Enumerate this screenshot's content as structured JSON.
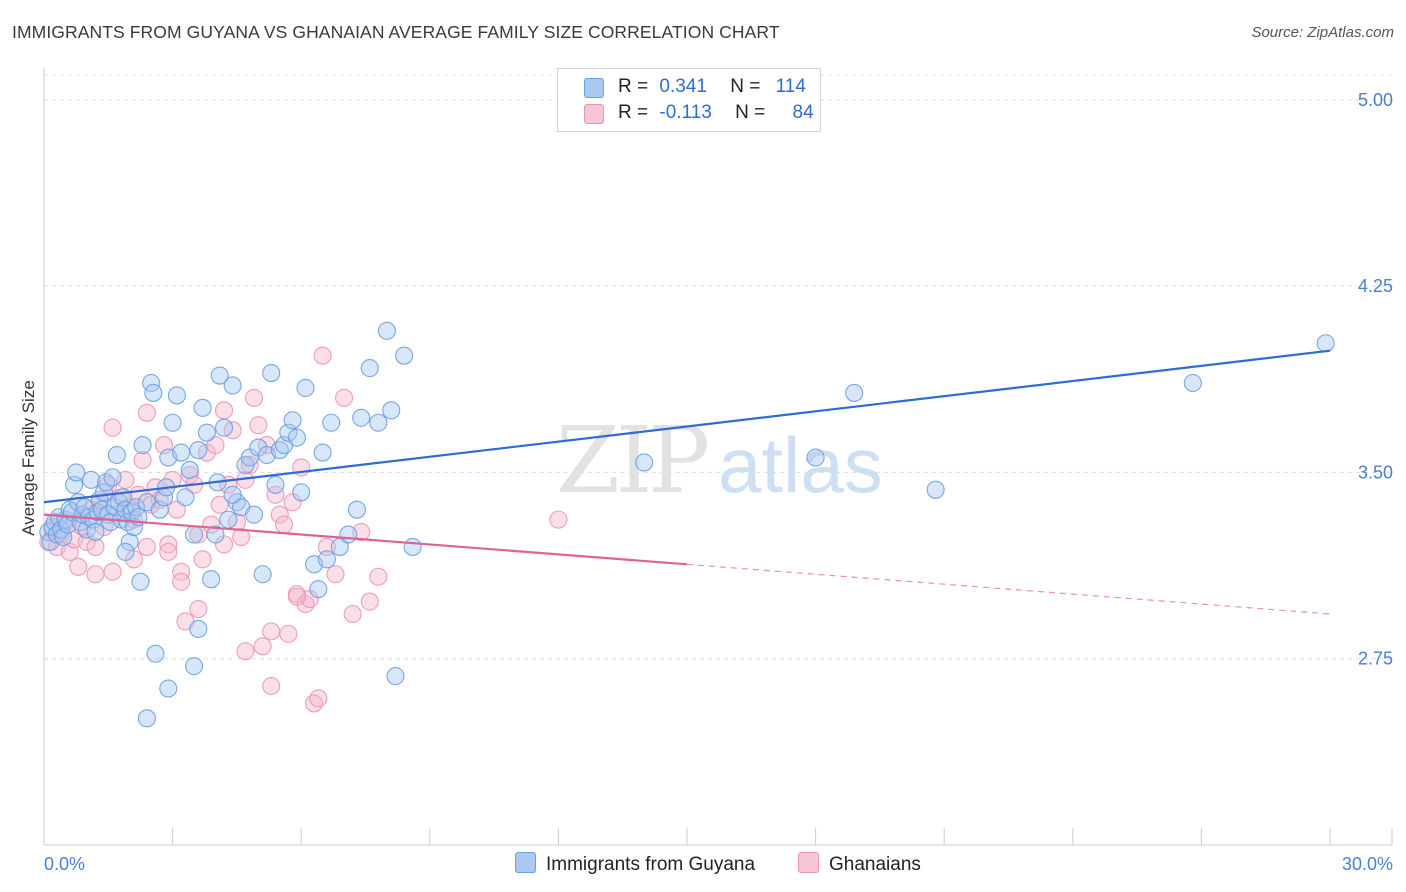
{
  "title": "IMMIGRANTS FROM GUYANA VS GHANAIAN AVERAGE FAMILY SIZE CORRELATION CHART",
  "source": "Source: ZipAtlas.com",
  "watermark": {
    "zip": "ZIP",
    "atlas": "atlas"
  },
  "legend": {
    "rows": [
      {
        "r_label": "R =",
        "r_value": "0.341",
        "n_label": "N =",
        "n_value": "114",
        "color": "#a9c8f2"
      },
      {
        "r_label": "R =",
        "r_value": "-0.113",
        "n_label": "N =",
        "n_value": "84",
        "color": "#f7b8cc"
      }
    ]
  },
  "bottom_legend": [
    {
      "label": "Immigrants from Guyana",
      "color": "#a9c8f2"
    },
    {
      "label": "Ghanaians",
      "color": "#f7b8cc"
    }
  ],
  "chart_data": {
    "type": "scatter",
    "title": "IMMIGRANTS FROM GUYANA VS GHANAIAN AVERAGE FAMILY SIZE CORRELATION CHART",
    "xlabel": "",
    "ylabel": "Average Family Size",
    "xlim": [
      0,
      30
    ],
    "ylim": [
      2.0,
      5.1
    ],
    "x_tick_labels": [
      {
        "value": 0,
        "label": "0.0%"
      },
      {
        "value": 30,
        "label": "30.0%"
      }
    ],
    "y_ticks": [
      {
        "value": 2.75,
        "label": "2.75"
      },
      {
        "value": 3.5,
        "label": "3.50"
      },
      {
        "value": 4.25,
        "label": "4.25"
      },
      {
        "value": 5.0,
        "label": "5.00"
      }
    ],
    "grid": true,
    "legend_position": "top-center",
    "series": [
      {
        "name": "Immigrants from Guyana",
        "color": "#6a9fe0",
        "fill": "#a9c8f2",
        "trend": {
          "x0": 0,
          "y0": 3.38,
          "x1": 30,
          "y1": 3.99,
          "color": "#2d6bd6"
        },
        "points": [
          [
            0.1,
            3.26
          ],
          [
            0.15,
            3.22
          ],
          [
            0.2,
            3.28
          ],
          [
            0.25,
            3.3
          ],
          [
            0.3,
            3.25
          ],
          [
            0.35,
            3.32
          ],
          [
            0.4,
            3.27
          ],
          [
            0.45,
            3.24
          ],
          [
            0.5,
            3.31
          ],
          [
            0.55,
            3.29
          ],
          [
            0.6,
            3.35
          ],
          [
            0.65,
            3.34
          ],
          [
            0.7,
            3.45
          ],
          [
            0.75,
            3.5
          ],
          [
            0.8,
            3.38
          ],
          [
            0.85,
            3.3
          ],
          [
            0.9,
            3.33
          ],
          [
            0.95,
            3.36
          ],
          [
            1.0,
            3.27
          ],
          [
            1.05,
            3.32
          ],
          [
            1.1,
            3.47
          ],
          [
            1.15,
            3.31
          ],
          [
            1.2,
            3.26
          ],
          [
            1.25,
            3.34
          ],
          [
            1.3,
            3.39
          ],
          [
            1.35,
            3.35
          ],
          [
            1.4,
            3.42
          ],
          [
            1.45,
            3.46
          ],
          [
            1.5,
            3.33
          ],
          [
            1.55,
            3.3
          ],
          [
            1.6,
            3.48
          ],
          [
            1.65,
            3.36
          ],
          [
            1.7,
            3.57
          ],
          [
            1.75,
            3.38
          ],
          [
            1.8,
            3.31
          ],
          [
            1.85,
            3.4
          ],
          [
            1.9,
            3.35
          ],
          [
            1.95,
            3.3
          ],
          [
            2.0,
            3.22
          ],
          [
            2.05,
            3.34
          ],
          [
            2.1,
            3.28
          ],
          [
            2.15,
            3.36
          ],
          [
            2.2,
            3.32
          ],
          [
            2.25,
            3.06
          ],
          [
            2.3,
            3.61
          ],
          [
            2.4,
            3.38
          ],
          [
            2.5,
            3.86
          ],
          [
            2.55,
            3.82
          ],
          [
            2.6,
            2.77
          ],
          [
            2.7,
            3.35
          ],
          [
            2.8,
            3.4
          ],
          [
            2.85,
            3.44
          ],
          [
            2.9,
            3.56
          ],
          [
            3.0,
            3.7
          ],
          [
            3.1,
            3.81
          ],
          [
            3.2,
            3.58
          ],
          [
            3.3,
            3.4
          ],
          [
            3.4,
            3.51
          ],
          [
            3.5,
            3.25
          ],
          [
            3.6,
            2.87
          ],
          [
            3.7,
            3.76
          ],
          [
            3.8,
            3.66
          ],
          [
            3.9,
            3.07
          ],
          [
            4.0,
            3.25
          ],
          [
            4.05,
            3.46
          ],
          [
            4.1,
            3.89
          ],
          [
            4.2,
            3.68
          ],
          [
            4.3,
            3.31
          ],
          [
            4.4,
            3.85
          ],
          [
            4.5,
            3.38
          ],
          [
            4.6,
            3.36
          ],
          [
            4.7,
            3.53
          ],
          [
            4.8,
            3.56
          ],
          [
            4.9,
            3.33
          ],
          [
            5.0,
            3.6
          ],
          [
            5.1,
            3.09
          ],
          [
            5.2,
            3.57
          ],
          [
            5.3,
            3.9
          ],
          [
            5.4,
            3.45
          ],
          [
            5.5,
            3.59
          ],
          [
            5.6,
            3.61
          ],
          [
            5.7,
            3.66
          ],
          [
            5.8,
            3.71
          ],
          [
            5.9,
            3.64
          ],
          [
            6.0,
            3.42
          ],
          [
            6.1,
            3.84
          ],
          [
            6.3,
            3.13
          ],
          [
            6.4,
            3.03
          ],
          [
            6.5,
            3.58
          ],
          [
            6.6,
            3.15
          ],
          [
            6.7,
            3.7
          ],
          [
            6.9,
            3.2
          ],
          [
            7.1,
            3.25
          ],
          [
            7.3,
            3.35
          ],
          [
            7.4,
            3.72
          ],
          [
            7.6,
            3.92
          ],
          [
            7.8,
            3.7
          ],
          [
            8.0,
            4.07
          ],
          [
            8.1,
            3.75
          ],
          [
            8.2,
            2.68
          ],
          [
            8.4,
            3.97
          ],
          [
            8.6,
            3.2
          ],
          [
            2.4,
            2.51
          ],
          [
            2.9,
            2.63
          ],
          [
            3.5,
            2.72
          ],
          [
            1.9,
            3.18
          ],
          [
            3.6,
            3.59
          ],
          [
            4.4,
            3.41
          ],
          [
            14.0,
            3.54
          ],
          [
            18.0,
            3.56
          ],
          [
            18.9,
            3.82
          ],
          [
            20.8,
            3.43
          ],
          [
            26.8,
            3.86
          ],
          [
            29.9,
            4.02
          ]
        ]
      },
      {
        "name": "Ghanaians",
        "color": "#ee94b0",
        "fill": "#f7b8cc",
        "trend": {
          "x0": 0,
          "y0": 3.33,
          "x1": 15,
          "y1": 3.13,
          "x2": 30,
          "y2": 2.93,
          "color": "#e0628e"
        },
        "points": [
          [
            0.1,
            3.22
          ],
          [
            0.2,
            3.27
          ],
          [
            0.3,
            3.2
          ],
          [
            0.4,
            3.25
          ],
          [
            0.5,
            3.3
          ],
          [
            0.6,
            3.18
          ],
          [
            0.7,
            3.23
          ],
          [
            0.8,
            3.12
          ],
          [
            0.9,
            3.28
          ],
          [
            1.0,
            3.22
          ],
          [
            1.1,
            3.35
          ],
          [
            1.2,
            3.2
          ],
          [
            1.3,
            3.38
          ],
          [
            1.4,
            3.28
          ],
          [
            1.5,
            3.45
          ],
          [
            1.6,
            3.68
          ],
          [
            1.7,
            3.33
          ],
          [
            1.8,
            3.4
          ],
          [
            1.9,
            3.47
          ],
          [
            2.0,
            3.36
          ],
          [
            2.1,
            3.31
          ],
          [
            2.2,
            3.41
          ],
          [
            2.3,
            3.55
          ],
          [
            2.4,
            3.74
          ],
          [
            2.5,
            3.37
          ],
          [
            2.6,
            3.44
          ],
          [
            2.7,
            3.39
          ],
          [
            2.8,
            3.61
          ],
          [
            2.9,
            3.21
          ],
          [
            3.0,
            3.47
          ],
          [
            3.1,
            3.35
          ],
          [
            3.2,
            3.1
          ],
          [
            3.3,
            2.9
          ],
          [
            3.4,
            3.49
          ],
          [
            3.5,
            3.45
          ],
          [
            3.6,
            2.95
          ],
          [
            3.7,
            3.15
          ],
          [
            3.8,
            3.58
          ],
          [
            3.9,
            3.29
          ],
          [
            4.0,
            3.61
          ],
          [
            4.1,
            3.37
          ],
          [
            4.2,
            3.75
          ],
          [
            4.3,
            3.45
          ],
          [
            4.4,
            3.67
          ],
          [
            4.5,
            3.3
          ],
          [
            4.6,
            3.24
          ],
          [
            4.7,
            3.47
          ],
          [
            4.8,
            3.53
          ],
          [
            4.9,
            3.8
          ],
          [
            5.0,
            3.69
          ],
          [
            5.1,
            2.8
          ],
          [
            5.2,
            3.61
          ],
          [
            5.3,
            2.86
          ],
          [
            5.4,
            3.41
          ],
          [
            5.5,
            3.33
          ],
          [
            5.6,
            3.29
          ],
          [
            5.7,
            2.85
          ],
          [
            5.8,
            3.38
          ],
          [
            5.9,
            3.01
          ],
          [
            6.0,
            3.52
          ],
          [
            6.1,
            2.97
          ],
          [
            6.2,
            2.99
          ],
          [
            6.3,
            2.57
          ],
          [
            6.4,
            2.59
          ],
          [
            6.5,
            3.97
          ],
          [
            6.6,
            3.2
          ],
          [
            6.8,
            3.09
          ],
          [
            7.0,
            3.8
          ],
          [
            7.2,
            2.93
          ],
          [
            7.4,
            3.26
          ],
          [
            7.6,
            2.98
          ],
          [
            7.8,
            3.08
          ],
          [
            1.2,
            3.09
          ],
          [
            1.6,
            3.1
          ],
          [
            2.1,
            3.15
          ],
          [
            2.4,
            3.2
          ],
          [
            2.9,
            3.18
          ],
          [
            3.2,
            3.06
          ],
          [
            3.6,
            3.25
          ],
          [
            4.2,
            3.21
          ],
          [
            4.7,
            2.78
          ],
          [
            5.3,
            2.64
          ],
          [
            5.9,
            3.0
          ],
          [
            12.0,
            3.31
          ]
        ]
      }
    ]
  }
}
